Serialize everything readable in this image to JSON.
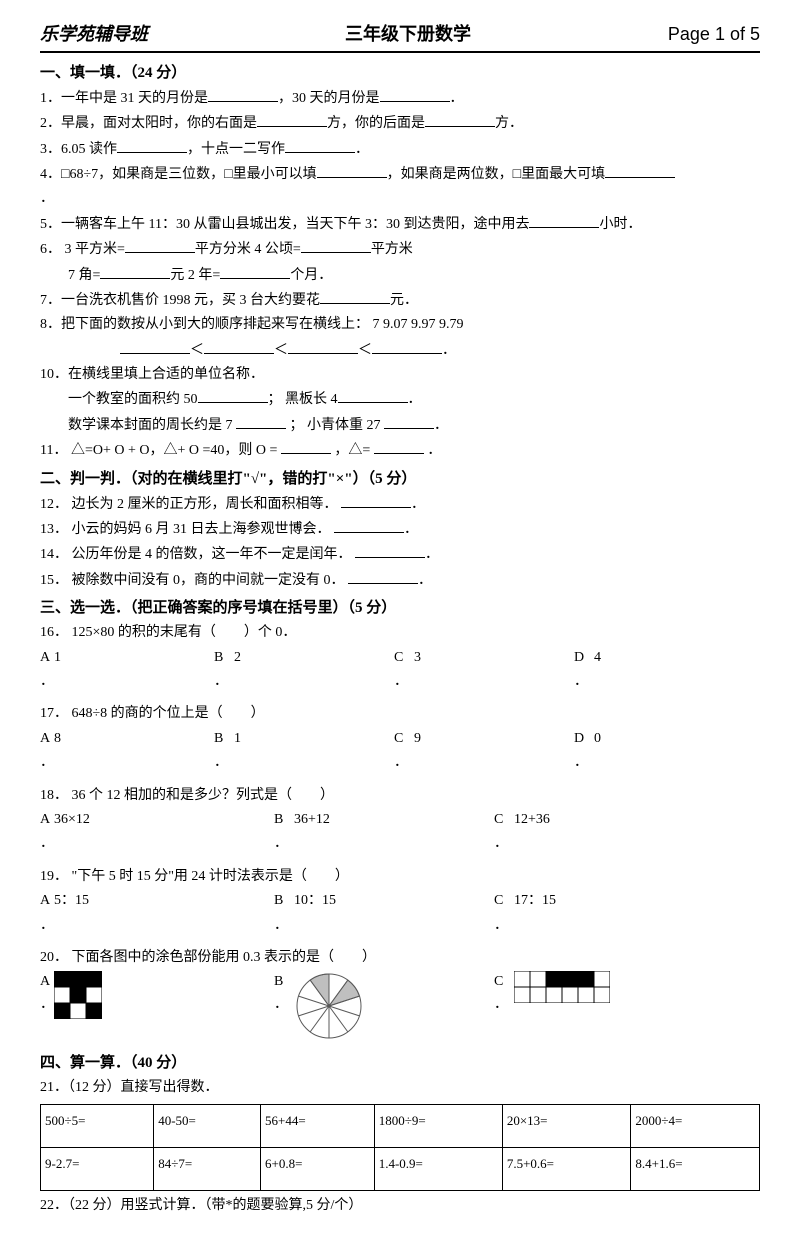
{
  "header": {
    "left": "乐学苑辅导班",
    "center": "三年级下册数学",
    "right": "Page 1 of 5"
  },
  "s1": {
    "title": "一、填一填．（24 分）",
    "q1a": "1．一年中是 31 天的月份是",
    "q1b": "，30 天的月份是",
    "q1c": "．",
    "q2a": "2．早晨，面对太阳时，你的右面是",
    "q2b": "方，你的后面是",
    "q2c": "方．",
    "q3a": "3．6.05 读作",
    "q3b": "，十点一二写作",
    "q3c": "．",
    "q4a": "4．□68÷7，如果商是三位数，□里最小可以填",
    "q4b": "，如果商是两位数，□里面最大可填",
    "q4c": "．",
    "q5a": "5．一辆客车上午 11：30 从雷山县城出发，当天下午 3：30 到达贵阳，途中用去",
    "q5b": "小时．",
    "q6a": "6．  3 平方米=",
    "q6b": "平方分米        4 公顷=",
    "q6c": "平方米",
    "q6d": "7 角=",
    "q6e": "元        2 年=",
    "q6f": "个月．",
    "q7a": "7．一台洗衣机售价 1998 元，买 3 台大约要花",
    "q7b": "元．",
    "q8a": "8．把下面的数按从小到大的顺序排起来写在横线上：     7        9.07        9.97        9.79",
    "q8b": "＜",
    "q8c": "＜",
    "q8d": "＜",
    "q8e": "．",
    "q10a": "10．在横线里填上合适的单位名称．",
    "q10b": "一个教室的面积约 50",
    "q10c": "；               黑板长 4",
    "q10d": "．",
    "q10e": "数学课本封面的周长约是 7  ",
    "q10f": "   ；       小青体重 27  ",
    "q10g": "．",
    "q11a": "11．  △=O+ O + O，△+ O =40，则 O =    ",
    "q11b": "   ，△=    ",
    "q11c": "   ．"
  },
  "s2": {
    "title": "二、判一判．（对的在横线里打\"√\"，错的打\"×\"）（5 分）",
    "q12": "12．  边长为 2 厘米的正方形，周长和面积相等．",
    "q13": "13．  小云的妈妈 6 月 31 日去上海参观世博会．",
    "q14": "14．  公历年份是 4 的倍数，这一年不一定是闰年．",
    "q15": "15．  被除数中间没有 0，商的中间就一定没有 0．"
  },
  "s3": {
    "title": "三、选一选．（把正确答案的序号填在括号里）（5 分）",
    "q16": "16．  125×80 的积的末尾有（　　）个 0．",
    "o16": {
      "a": "1",
      "b": "2",
      "c": "3",
      "d": "4"
    },
    "q17": "17．  648÷8 的商的个位上是（　　）",
    "o17": {
      "a": "8",
      "b": "1",
      "c": "9",
      "d": "0"
    },
    "q18": "18．  36 个 12 相加的和是多少？列式是（　　）",
    "o18": {
      "a": "36×12",
      "b": "36+12",
      "c": "12+36"
    },
    "q19": "19．  \"下午 5 时 15 分\"用 24 计时法表示是（　　）",
    "o19": {
      "a": "5：15",
      "b": "10：15",
      "c": "17：15"
    },
    "q20": "20．  下面各图中的涂色部份能用 0.3 表示的是（　　）"
  },
  "s4": {
    "title": "四、算一算．（40 分）",
    "q21": "21．（12 分）直接写出得数．",
    "table": [
      [
        "500÷5=",
        "40-50=",
        "56+44=",
        "1800÷9=",
        "20×13=",
        "2000÷4="
      ],
      [
        "9-2.7=",
        "84÷7=",
        "6+0.8=",
        "1.4-0.9=",
        "7.5+0.6=",
        "8.4+1.6="
      ]
    ],
    "q22": "22．（22 分）用竖式计算．（带*的题要验算,5 分/个）"
  },
  "labels": {
    "A": "A",
    "B": "B",
    "C": "C",
    "D": "D",
    "dot": "．"
  },
  "figA": {
    "size": 48,
    "cell": 16,
    "bg": "#ffffff",
    "fg": "#000000",
    "cells": [
      [
        0,
        0
      ],
      [
        1,
        0
      ],
      [
        2,
        0
      ],
      [
        1,
        1
      ],
      [
        0,
        2
      ],
      [
        2,
        2
      ]
    ]
  },
  "figB": {
    "size": 70,
    "r": 32,
    "fill": "#bfbfbf",
    "stroke": "#595959",
    "wedges": [
      [
        234,
        270
      ],
      [
        306,
        342
      ]
    ]
  },
  "figC": {
    "w": 96,
    "h": 32,
    "cw": 16,
    "ch": 16,
    "fg": "#000000",
    "stroke": "#000000",
    "black": [
      [
        2,
        0
      ],
      [
        3,
        0
      ],
      [
        4,
        0
      ]
    ]
  }
}
